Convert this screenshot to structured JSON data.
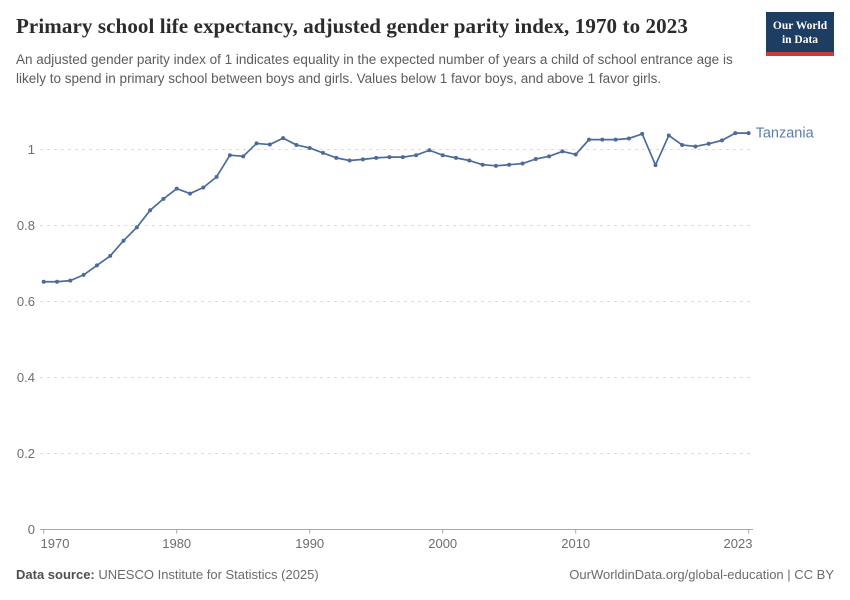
{
  "header": {
    "title": "Primary school life expectancy, adjusted gender parity index, 1970 to 2023",
    "subtitle": "An adjusted gender parity index of 1 indicates equality in the expected number of years a child of school entrance age is likely to spend in primary school between boys and girls. Values below 1 favor boys, and above 1 favor girls.",
    "logo": {
      "line1": "Our World",
      "line2": "in Data"
    }
  },
  "chart_data": {
    "type": "line",
    "title": "Primary school life expectancy, adjusted gender parity index, 1970 to 2023",
    "xlabel": "",
    "ylabel": "",
    "xlim": [
      1970,
      2023
    ],
    "ylim": [
      0,
      1.05
    ],
    "grid": true,
    "legend_position": "end-of-line-label",
    "xticks": [
      1970,
      1980,
      1990,
      2000,
      2010,
      2023
    ],
    "yticks": [
      0,
      0.2,
      0.4,
      0.6,
      0.8,
      1
    ],
    "ytick_labels": [
      "0",
      "0.2",
      "0.4",
      "0.6",
      "0.8",
      "1"
    ],
    "categories": [
      1970,
      1971,
      1972,
      1973,
      1974,
      1975,
      1976,
      1977,
      1978,
      1979,
      1980,
      1981,
      1982,
      1983,
      1984,
      1985,
      1986,
      1987,
      1988,
      1989,
      1990,
      1991,
      1992,
      1993,
      1994,
      1995,
      1996,
      1997,
      1998,
      1999,
      2000,
      2001,
      2002,
      2003,
      2004,
      2005,
      2006,
      2007,
      2008,
      2009,
      2010,
      2011,
      2012,
      2013,
      2014,
      2015,
      2016,
      2017,
      2018,
      2019,
      2020,
      2021,
      2022,
      2023
    ],
    "series": [
      {
        "name": "Tanzania",
        "color": "#4c6a9c",
        "label_color": "#5b7daa",
        "values": [
          0.652,
          0.652,
          0.655,
          0.67,
          0.695,
          0.72,
          0.76,
          0.795,
          0.84,
          0.87,
          0.897,
          0.884,
          0.9,
          0.928,
          0.985,
          0.982,
          1.016,
          1.013,
          1.03,
          1.012,
          1.004,
          0.991,
          0.978,
          0.971,
          0.974,
          0.978,
          0.98,
          0.98,
          0.985,
          0.998,
          0.985,
          0.978,
          0.971,
          0.96,
          0.957,
          0.96,
          0.963,
          0.975,
          0.982,
          0.995,
          0.987,
          1.026,
          1.026,
          1.026,
          1.029,
          1.041,
          0.959,
          1.037,
          1.012,
          1.008,
          1.015,
          1.024,
          1.043,
          1.043
        ]
      }
    ]
  },
  "footer": {
    "source_label": "Data source:",
    "source_text": " UNESCO Institute for Statistics (2025)",
    "attribution": "OurWorldinData.org/global-education | CC BY"
  },
  "colors": {
    "line": "#4c6a9c",
    "entity_label": "#5b7daa",
    "gridline": "#dcdcdc",
    "axis": "#a8a8a8",
    "tick_text": "#6e6e6e",
    "logo_bg": "#1d3d63",
    "logo_red": "#c73a36"
  }
}
